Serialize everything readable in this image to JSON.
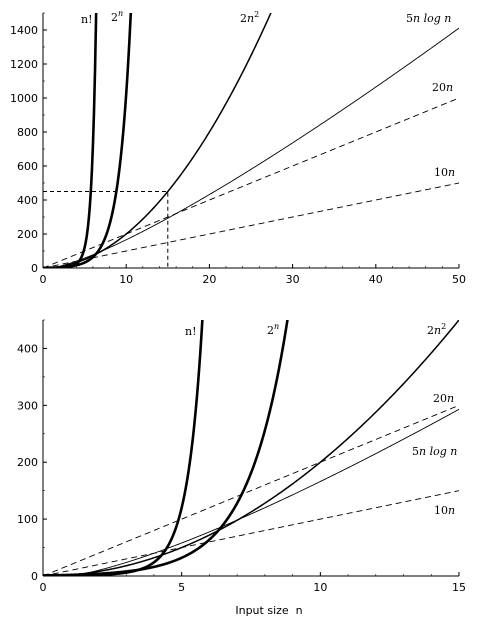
{
  "chart_data": [
    {
      "type": "line",
      "title": "",
      "xlabel": "",
      "ylabel": "",
      "xlim": [
        0,
        50
      ],
      "ylim": [
        0,
        1500
      ],
      "xticks": [
        0,
        10,
        20,
        30,
        40,
        50
      ],
      "yticks": [
        0,
        200,
        400,
        600,
        800,
        1000,
        1200,
        1400
      ],
      "grid": false,
      "series": [
        {
          "name": "n!",
          "function": "factorial",
          "style": "thick",
          "x": [
            0,
            1,
            2,
            3,
            4,
            5,
            6,
            6.2
          ],
          "values": [
            1,
            1,
            2,
            6,
            24,
            120,
            720,
            1500
          ]
        },
        {
          "name": "2^n",
          "function": "exp2",
          "style": "thick",
          "x": [
            0,
            2,
            4,
            6,
            8,
            9,
            10,
            10.55
          ],
          "values": [
            1,
            4,
            16,
            64,
            256,
            512,
            1024,
            1500
          ]
        },
        {
          "name": "2n^2",
          "function": "2n2",
          "style": "medium",
          "x": [
            0,
            5,
            10,
            15,
            20,
            25,
            27.4
          ],
          "values": [
            0,
            50,
            200,
            450,
            800,
            1250,
            1500
          ]
        },
        {
          "name": "5n log n",
          "function": "5nlogn",
          "style": "thin",
          "x": [
            0,
            10,
            20,
            30,
            40,
            50
          ],
          "values": [
            0,
            166,
            432,
            736,
            1064,
            1411
          ]
        },
        {
          "name": "20n",
          "function": "20n",
          "style": "dashed",
          "x": [
            0,
            50
          ],
          "values": [
            0,
            1000
          ]
        },
        {
          "name": "10n",
          "function": "10n",
          "style": "dashed",
          "x": [
            0,
            50
          ],
          "values": [
            0,
            500
          ]
        }
      ],
      "annotation": {
        "type": "dashed-box",
        "x": [
          0,
          15
        ],
        "y": [
          0,
          450
        ]
      }
    },
    {
      "type": "line",
      "title": "",
      "xlabel": "Input size  n",
      "ylabel": "",
      "xlim": [
        0,
        15
      ],
      "ylim": [
        0,
        450
      ],
      "xticks": [
        0,
        5,
        10,
        15
      ],
      "yticks": [
        0,
        100,
        200,
        300,
        400
      ],
      "grid": false,
      "series": [
        {
          "name": "n!",
          "function": "factorial",
          "style": "thick",
          "x": [
            0,
            1,
            2,
            3,
            4,
            5,
            5.8
          ],
          "values": [
            1,
            1,
            2,
            6,
            24,
            120,
            450
          ]
        },
        {
          "name": "2^n",
          "function": "exp2",
          "style": "thick",
          "x": [
            0,
            2,
            4,
            6,
            8,
            8.81
          ],
          "values": [
            1,
            4,
            16,
            64,
            256,
            450
          ]
        },
        {
          "name": "2n^2",
          "function": "2n2",
          "style": "medium",
          "x": [
            0,
            5,
            10,
            15
          ],
          "values": [
            0,
            50,
            200,
            450
          ]
        },
        {
          "name": "20n",
          "function": "20n",
          "style": "dashed",
          "x": [
            0,
            15
          ],
          "values": [
            0,
            300
          ]
        },
        {
          "name": "5n log n",
          "function": "5nlogn",
          "style": "thin",
          "x": [
            0,
            5,
            10,
            15
          ],
          "values": [
            0,
            58,
            166,
            293
          ]
        },
        {
          "name": "10n",
          "function": "10n",
          "style": "dashed",
          "x": [
            0,
            15
          ],
          "values": [
            0,
            150
          ]
        }
      ]
    }
  ]
}
